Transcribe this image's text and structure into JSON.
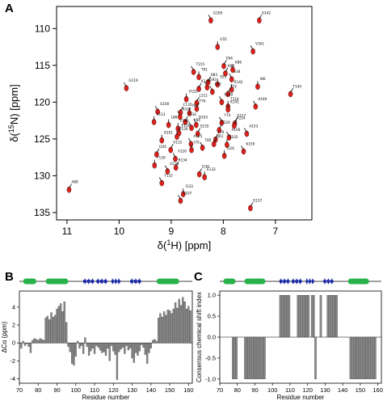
{
  "panels": {
    "a": "A",
    "b": "B",
    "c": "C"
  },
  "colors": {
    "peak_red": "#e0201a",
    "peak_black": "#1a1a1a",
    "bar_gray": "#8c8c8c",
    "helix_green": "#29b24a",
    "strand_blue": "#1f2ea8"
  },
  "chart_data": [
    {
      "type": "scatter",
      "xlabel": "δ(1H) [ppm]",
      "ylabel": "δ(15N) [ppm]",
      "xlim": [
        11.2,
        6.3
      ],
      "ylim": [
        107,
        136
      ],
      "x_ticks": [
        11,
        10,
        9,
        8,
        7
      ],
      "y_ticks": [
        110,
        115,
        120,
        125,
        130,
        135
      ],
      "grid": false,
      "peaks": [
        {
          "label": "G109",
          "x": 8.24,
          "y": 108.9
        },
        {
          "label": "G142",
          "x": 7.31,
          "y": 108.9
        },
        {
          "label": "G55",
          "x": 8.11,
          "y": 112.5
        },
        {
          "label": "V161",
          "x": 7.43,
          "y": 113.1
        },
        {
          "label": "E94",
          "x": 7.99,
          "y": 115.1
        },
        {
          "label": "K86",
          "x": 7.82,
          "y": 115.6
        },
        {
          "label": "T155",
          "x": 8.57,
          "y": 115.9
        },
        {
          "label": "K96",
          "x": 7.96,
          "y": 116.1
        },
        {
          "label": "T91",
          "x": 8.47,
          "y": 116.6
        },
        {
          "label": "E44",
          "x": 7.84,
          "y": 116.9
        },
        {
          "label": "H83",
          "x": 8.29,
          "y": 117.3
        },
        {
          "label": "S51",
          "x": 8.11,
          "y": 117.6
        },
        {
          "label": "G93",
          "x": 8.31,
          "y": 118.0
        },
        {
          "label": "K144",
          "x": 8.47,
          "y": 118.2
        },
        {
          "label": "R142",
          "x": 7.84,
          "y": 118.3
        },
        {
          "label": "K62",
          "x": 8.21,
          "y": 118.6
        },
        {
          "label": "T72",
          "x": 7.91,
          "y": 118.9
        },
        {
          "label": "I86",
          "x": 7.34,
          "y": 117.9
        },
        {
          "label": "G119",
          "x": 9.86,
          "y": 118.1
        },
        {
          "label": "T145",
          "x": 6.71,
          "y": 118.9
        },
        {
          "label": "V152",
          "x": 8.71,
          "y": 119.6
        },
        {
          "label": "S149",
          "x": 8.03,
          "y": 120.0
        },
        {
          "label": "L112",
          "x": 8.51,
          "y": 120.1
        },
        {
          "label": "T116",
          "x": 7.91,
          "y": 120.6
        },
        {
          "label": "A169",
          "x": 7.38,
          "y": 120.6
        },
        {
          "label": "T76",
          "x": 8.51,
          "y": 120.9
        },
        {
          "label": "K141",
          "x": 7.91,
          "y": 121.0
        },
        {
          "label": "G100",
          "x": 9.26,
          "y": 121.3
        },
        {
          "label": "C135",
          "x": 8.82,
          "y": 121.4
        },
        {
          "label": "Y87",
          "x": 8.65,
          "y": 121.5
        },
        {
          "label": "K147",
          "x": 8.83,
          "y": 122.0
        },
        {
          "label": "T134",
          "x": 8.73,
          "y": 122.7
        },
        {
          "label": "V113",
          "x": 9.33,
          "y": 122.7
        },
        {
          "label": "Y74",
          "x": 8.03,
          "y": 122.8
        },
        {
          "label": "E127",
          "x": 7.78,
          "y": 122.9
        },
        {
          "label": "L88",
          "x": 9.05,
          "y": 123.1
        },
        {
          "label": "D103",
          "x": 8.52,
          "y": 123.1
        },
        {
          "label": "K114",
          "x": 7.79,
          "y": 123.2
        },
        {
          "label": "F106",
          "x": 8.87,
          "y": 123.6
        },
        {
          "label": "Y84",
          "x": 8.61,
          "y": 123.5
        },
        {
          "label": "F120",
          "x": 8.08,
          "y": 123.8
        },
        {
          "label": "E116",
          "x": 8.85,
          "y": 124.2
        },
        {
          "label": "A153",
          "x": 7.55,
          "y": 124.3
        },
        {
          "label": "S155",
          "x": 8.49,
          "y": 124.3
        },
        {
          "label": "T126",
          "x": 8.89,
          "y": 124.7
        },
        {
          "label": "A100",
          "x": 7.89,
          "y": 124.8
        },
        {
          "label": "L79",
          "x": 8.15,
          "y": 125.1
        },
        {
          "label": "K101",
          "x": 9.18,
          "y": 125.2
        },
        {
          "label": "A125",
          "x": 8.62,
          "y": 125.7
        },
        {
          "label": "Q61",
          "x": 8.18,
          "y": 125.7
        },
        {
          "label": "S102",
          "x": 7.93,
          "y": 125.8
        },
        {
          "label": "T85",
          "x": 8.4,
          "y": 126.2
        },
        {
          "label": "V115",
          "x": 9.01,
          "y": 126.5
        },
        {
          "label": "I75",
          "x": 8.61,
          "y": 126.5
        },
        {
          "label": "K159",
          "x": 7.61,
          "y": 126.7
        },
        {
          "label": "I105",
          "x": 9.28,
          "y": 127.1
        },
        {
          "label": "I126",
          "x": 7.98,
          "y": 127.3
        },
        {
          "label": "V120",
          "x": 8.92,
          "y": 127.7
        },
        {
          "label": "R134",
          "x": 8.91,
          "y": 128.9
        },
        {
          "label": "F130",
          "x": 9.32,
          "y": 128.6
        },
        {
          "label": "G124",
          "x": 9.07,
          "y": 129.4
        },
        {
          "label": "I130",
          "x": 8.46,
          "y": 129.8
        },
        {
          "label": "E132",
          "x": 8.36,
          "y": 130.2
        },
        {
          "label": "Y122",
          "x": 9.18,
          "y": 131.0
        },
        {
          "label": "A89",
          "x": 10.96,
          "y": 131.9
        },
        {
          "label": "I133",
          "x": 8.77,
          "y": 132.5
        },
        {
          "label": "A107",
          "x": 8.82,
          "y": 133.4
        },
        {
          "label": "G137",
          "x": 7.48,
          "y": 134.4
        }
      ]
    },
    {
      "type": "bar",
      "xlabel": "Residue number",
      "ylabel": "ΔCα (ppm)",
      "xlim": [
        70,
        162
      ],
      "ylim": [
        -4.5,
        5.8
      ],
      "x_ticks": [
        70,
        80,
        90,
        100,
        110,
        120,
        130,
        140,
        150,
        160
      ],
      "y_ticks": [
        -4,
        -2,
        0,
        2,
        4
      ],
      "x": [
        71,
        72,
        73,
        74,
        75,
        76,
        77,
        78,
        79,
        80,
        81,
        82,
        83,
        84,
        85,
        86,
        87,
        88,
        89,
        90,
        91,
        92,
        93,
        94,
        95,
        96,
        97,
        98,
        99,
        100,
        101,
        102,
        103,
        104,
        105,
        106,
        107,
        108,
        109,
        110,
        111,
        112,
        113,
        114,
        115,
        116,
        117,
        118,
        119,
        120,
        121,
        122,
        123,
        124,
        125,
        126,
        127,
        128,
        129,
        130,
        131,
        132,
        133,
        134,
        135,
        136,
        137,
        138,
        139,
        140,
        141,
        142,
        143,
        144,
        145,
        146,
        147,
        148,
        149,
        150,
        151,
        152,
        153,
        154,
        155,
        156,
        157,
        158,
        159,
        160,
        161
      ],
      "values": [
        -0.6,
        0.2,
        -0.3,
        -0.1,
        -0.4,
        -1.1,
        0.3,
        0.5,
        0.4,
        0.3,
        0.5,
        0.4,
        0.3,
        2.8,
        3.0,
        2.6,
        3.4,
        2.9,
        3.1,
        3.8,
        4.1,
        4.4,
        3.5,
        4.6,
        2.3,
        -0.4,
        -1.0,
        -2.3,
        -2.5,
        -1.5,
        0.2,
        -0.6,
        -0.3,
        -1.2,
        0.6,
        -0.4,
        -1.4,
        -0.9,
        -0.6,
        -1.2,
        -0.3,
        -0.5,
        -0.8,
        -1.1,
        -1.0,
        -1.4,
        -0.6,
        -2.0,
        -0.3,
        -0.9,
        -1.3,
        -4.1,
        -1.0,
        -0.7,
        -0.5,
        -1.2,
        -0.3,
        -0.8,
        -0.6,
        -1.7,
        -2.2,
        -1.1,
        -1.4,
        -0.9,
        -0.2,
        -0.5,
        -1.3,
        -2.3,
        -1.1,
        -0.6,
        0.3,
        0.4,
        0.2,
        2.8,
        3.3,
        2.9,
        3.5,
        3.1,
        3.7,
        3.6,
        3.3,
        3.8,
        4.5,
        3.9,
        4.9,
        4.2,
        5.1,
        4.6,
        3.8,
        4.1,
        3.6
      ]
    },
    {
      "type": "bar",
      "xlabel": "Residue number",
      "ylabel": "Consensus chemical shift index",
      "xlim": [
        70,
        162
      ],
      "ylim": [
        -1.1,
        1.1
      ],
      "x_ticks": [
        70,
        80,
        90,
        100,
        110,
        120,
        130,
        140,
        150,
        160
      ],
      "y_ticks": [
        -1.0,
        -0.5,
        0.0,
        0.5,
        1.0
      ],
      "segments": [
        {
          "start": 77,
          "end": 80,
          "value": -1
        },
        {
          "start": 84,
          "end": 96,
          "value": -1
        },
        {
          "start": 104,
          "end": 110,
          "value": 1
        },
        {
          "start": 114,
          "end": 121,
          "value": 1
        },
        {
          "start": 122,
          "end": 124,
          "value": 1
        },
        {
          "start": 124,
          "end": 125,
          "value": -1
        },
        {
          "start": 127,
          "end": 128,
          "value": 1
        },
        {
          "start": 131,
          "end": 137,
          "value": 1
        },
        {
          "start": 144,
          "end": 159,
          "value": -1
        }
      ]
    }
  ],
  "secondary_structure": [
    {
      "kind": "helix",
      "start": 72,
      "end": 79
    },
    {
      "kind": "helix",
      "start": 84,
      "end": 96
    },
    {
      "kind": "strand",
      "start": 104,
      "end": 110
    },
    {
      "kind": "strand",
      "start": 111,
      "end": 117
    },
    {
      "kind": "strand",
      "start": 119,
      "end": 124
    },
    {
      "kind": "strand",
      "start": 129,
      "end": 135
    },
    {
      "kind": "helix",
      "start": 143,
      "end": 155
    }
  ]
}
